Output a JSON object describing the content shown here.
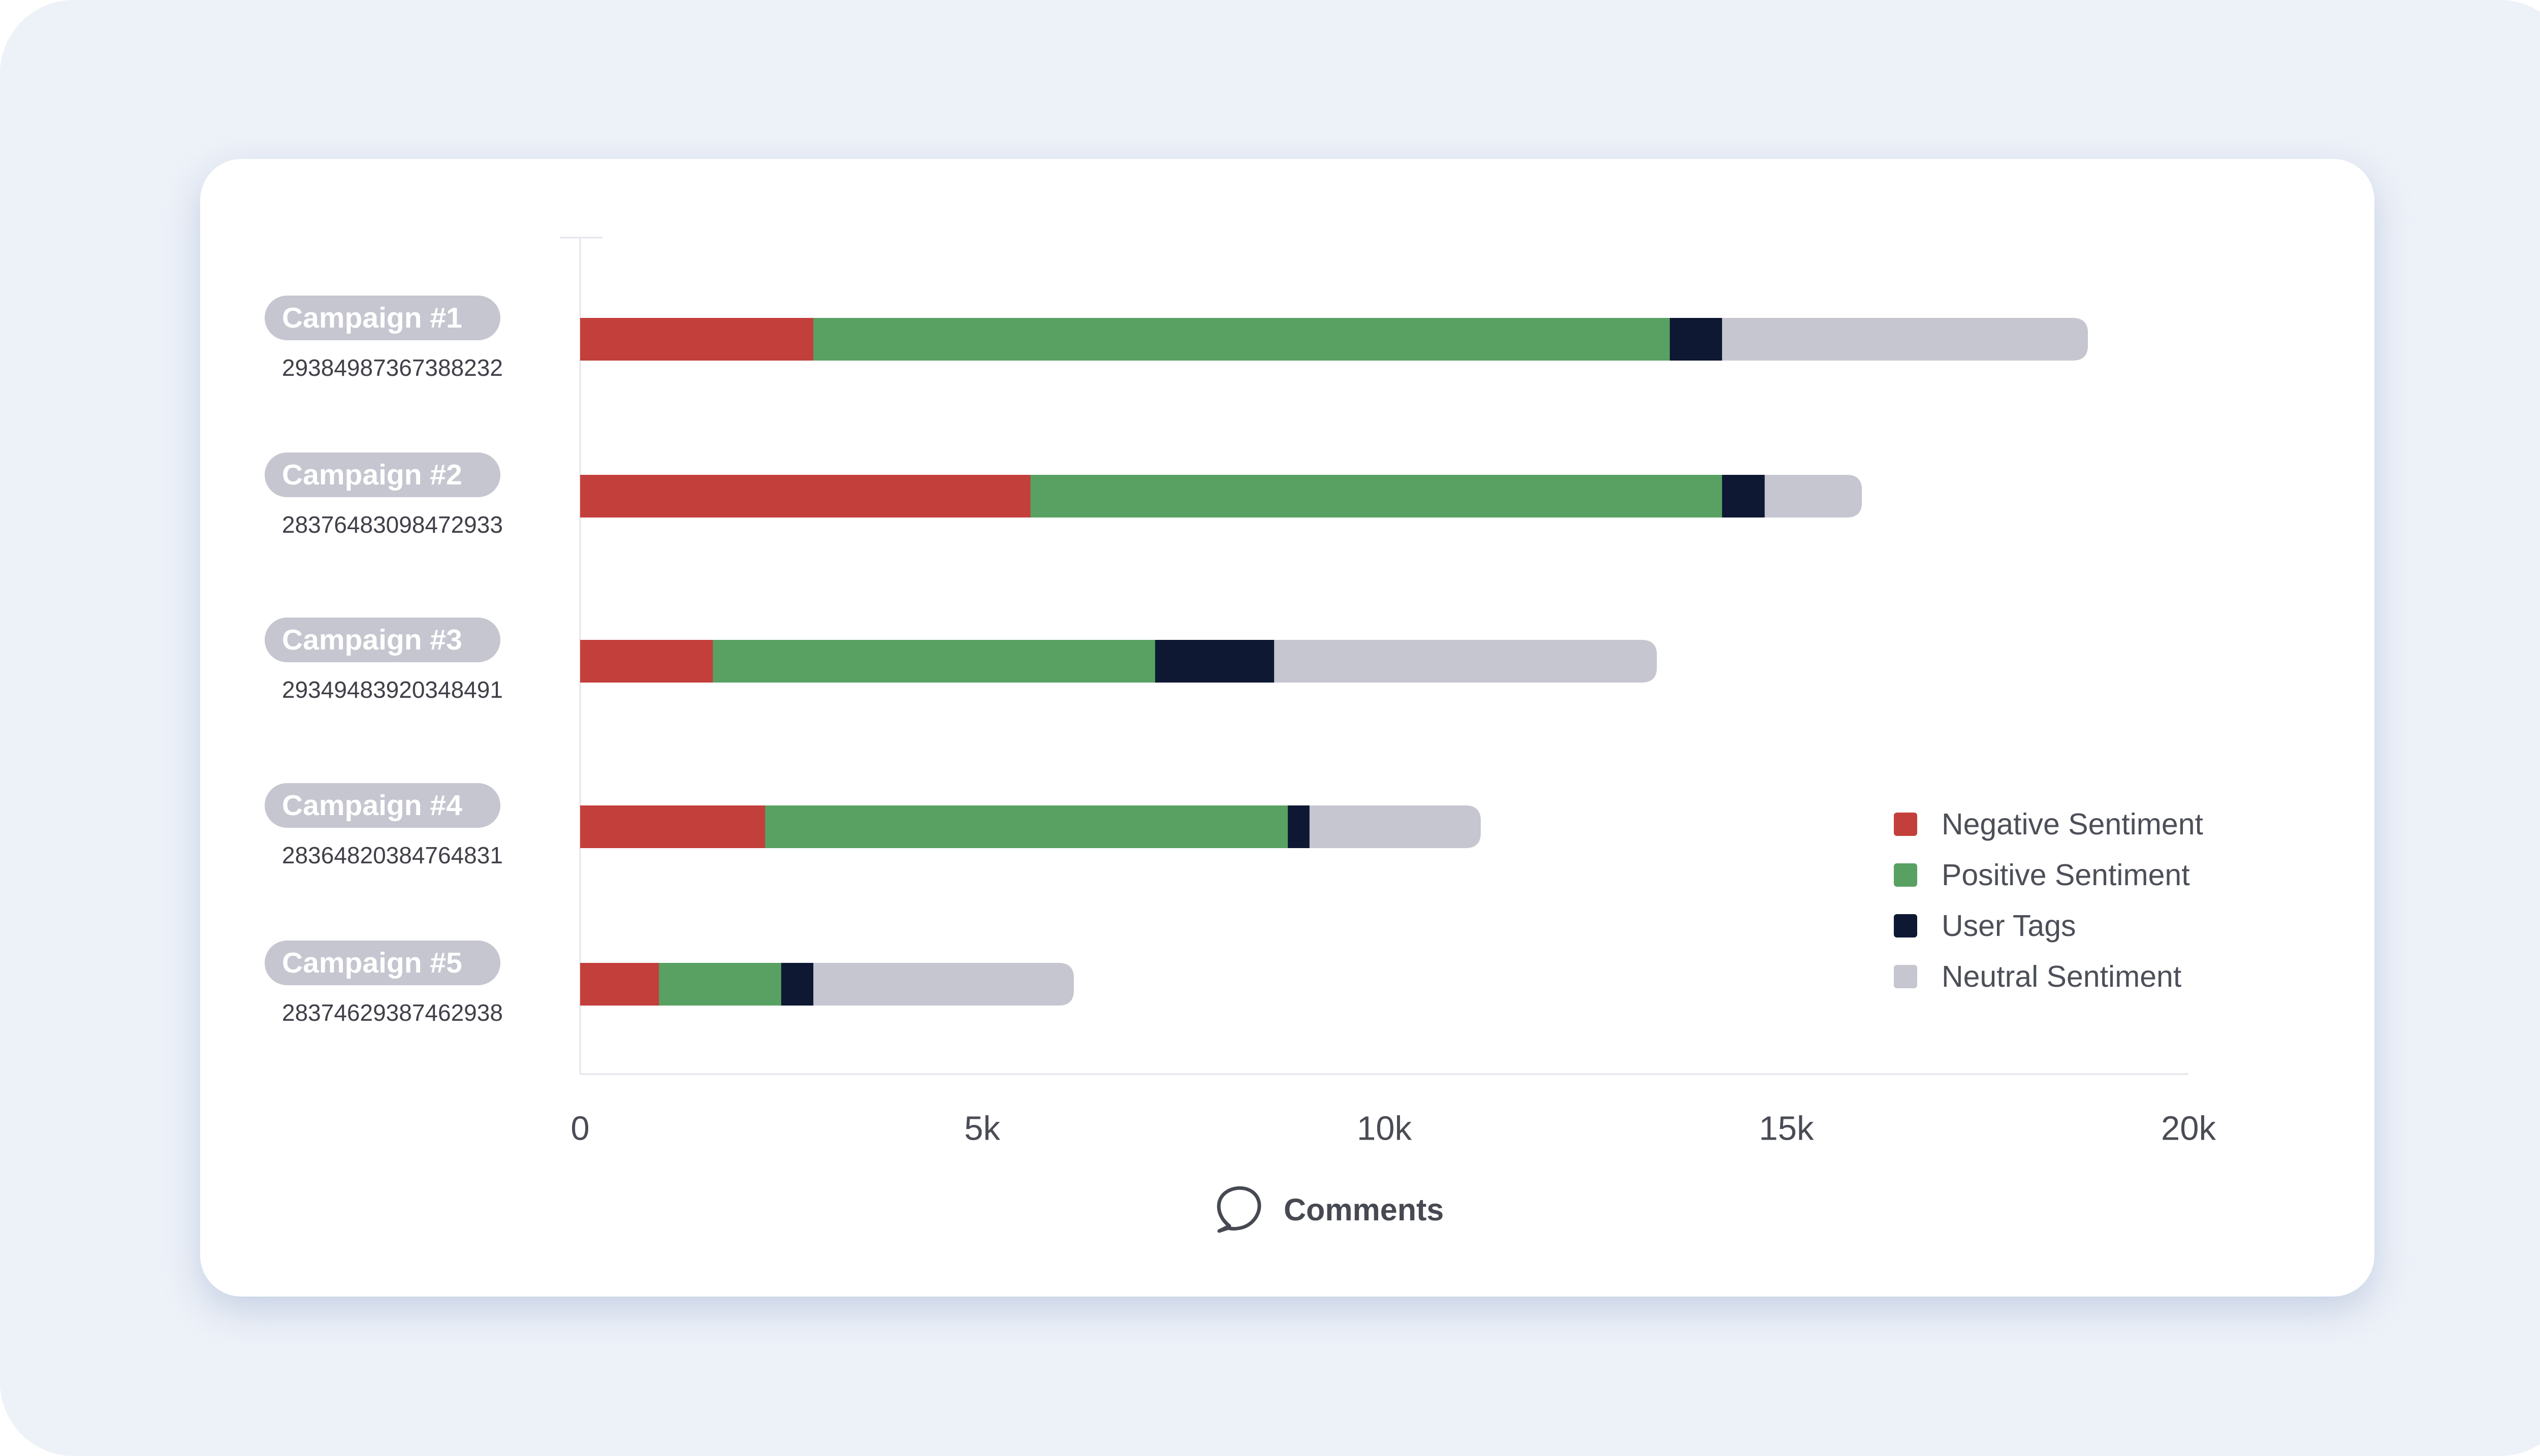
{
  "chart_data": {
    "type": "bar",
    "orientation": "horizontal",
    "stacked": true,
    "categories": [
      "Campaign #1",
      "Campaign #2",
      "Campaign #3",
      "Campaign #4",
      "Campaign #5"
    ],
    "category_ids": [
      "29384987367388232",
      "28376483098472933",
      "29349483920348491",
      "28364820384764831",
      "28374629387462938"
    ],
    "series": [
      {
        "name": "Negative Sentiment",
        "color": "#c33f3b",
        "values": [
          2900,
          5600,
          1650,
          2300,
          980
        ]
      },
      {
        "name": "Positive Sentiment",
        "color": "#58a163",
        "values": [
          10650,
          8600,
          5500,
          6500,
          1520
        ]
      },
      {
        "name": "User Tags",
        "color": "#0e1833",
        "values": [
          650,
          530,
          1480,
          270,
          400
        ]
      },
      {
        "name": "Neutral Sentiment",
        "color": "#c5c6d0",
        "values": [
          4550,
          1210,
          4760,
          2130,
          3240
        ]
      }
    ],
    "xlim": [
      0,
      20000
    ],
    "xticks": [
      {
        "value": 0,
        "label": "0"
      },
      {
        "value": 5000,
        "label": "5k"
      },
      {
        "value": 10000,
        "label": "10k"
      },
      {
        "value": 15000,
        "label": "15k"
      },
      {
        "value": 20000,
        "label": "20k"
      }
    ],
    "xlabel": "Comments",
    "xlabel_icon": "speech-bubble-icon",
    "legend_position": "right",
    "grid": false
  },
  "colors": {
    "background": "#edf1f8",
    "card": "#ffffff",
    "pill": "#c5c6d0",
    "axis": "#e3e5eb"
  }
}
